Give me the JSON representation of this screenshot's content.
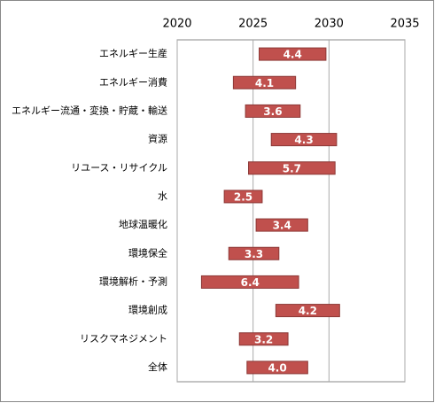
{
  "chart_data": {
    "type": "floating-bar",
    "categories": [
      "エネルギー生産",
      "エネルギー消費",
      "エネルギー流通・変換・貯蔵・輸送",
      "資源",
      "リユース・リサイクル",
      "水",
      "地球温暖化",
      "環境保全",
      "環境解析・予測",
      "環境創成",
      "リスクマネジメント",
      "全体"
    ],
    "starts": [
      2025.4,
      2023.7,
      2024.5,
      2026.2,
      2024.7,
      2023.1,
      2025.2,
      2023.4,
      2021.6,
      2026.5,
      2024.1,
      2024.6
    ],
    "values": [
      4.4,
      4.1,
      3.6,
      4.3,
      5.7,
      2.5,
      3.4,
      3.3,
      6.4,
      4.2,
      3.2,
      4.0
    ],
    "value_labels": [
      "4.4",
      "4.1",
      "3.6",
      "4.3",
      "5.7",
      "2.5",
      "3.4",
      "3.3",
      "6.4",
      "4.2",
      "3.2",
      "4.0"
    ],
    "color": "#c0504d",
    "xlim": [
      2020,
      2035
    ],
    "xticks": [
      2020,
      2025,
      2030,
      2035
    ],
    "grid": true
  }
}
